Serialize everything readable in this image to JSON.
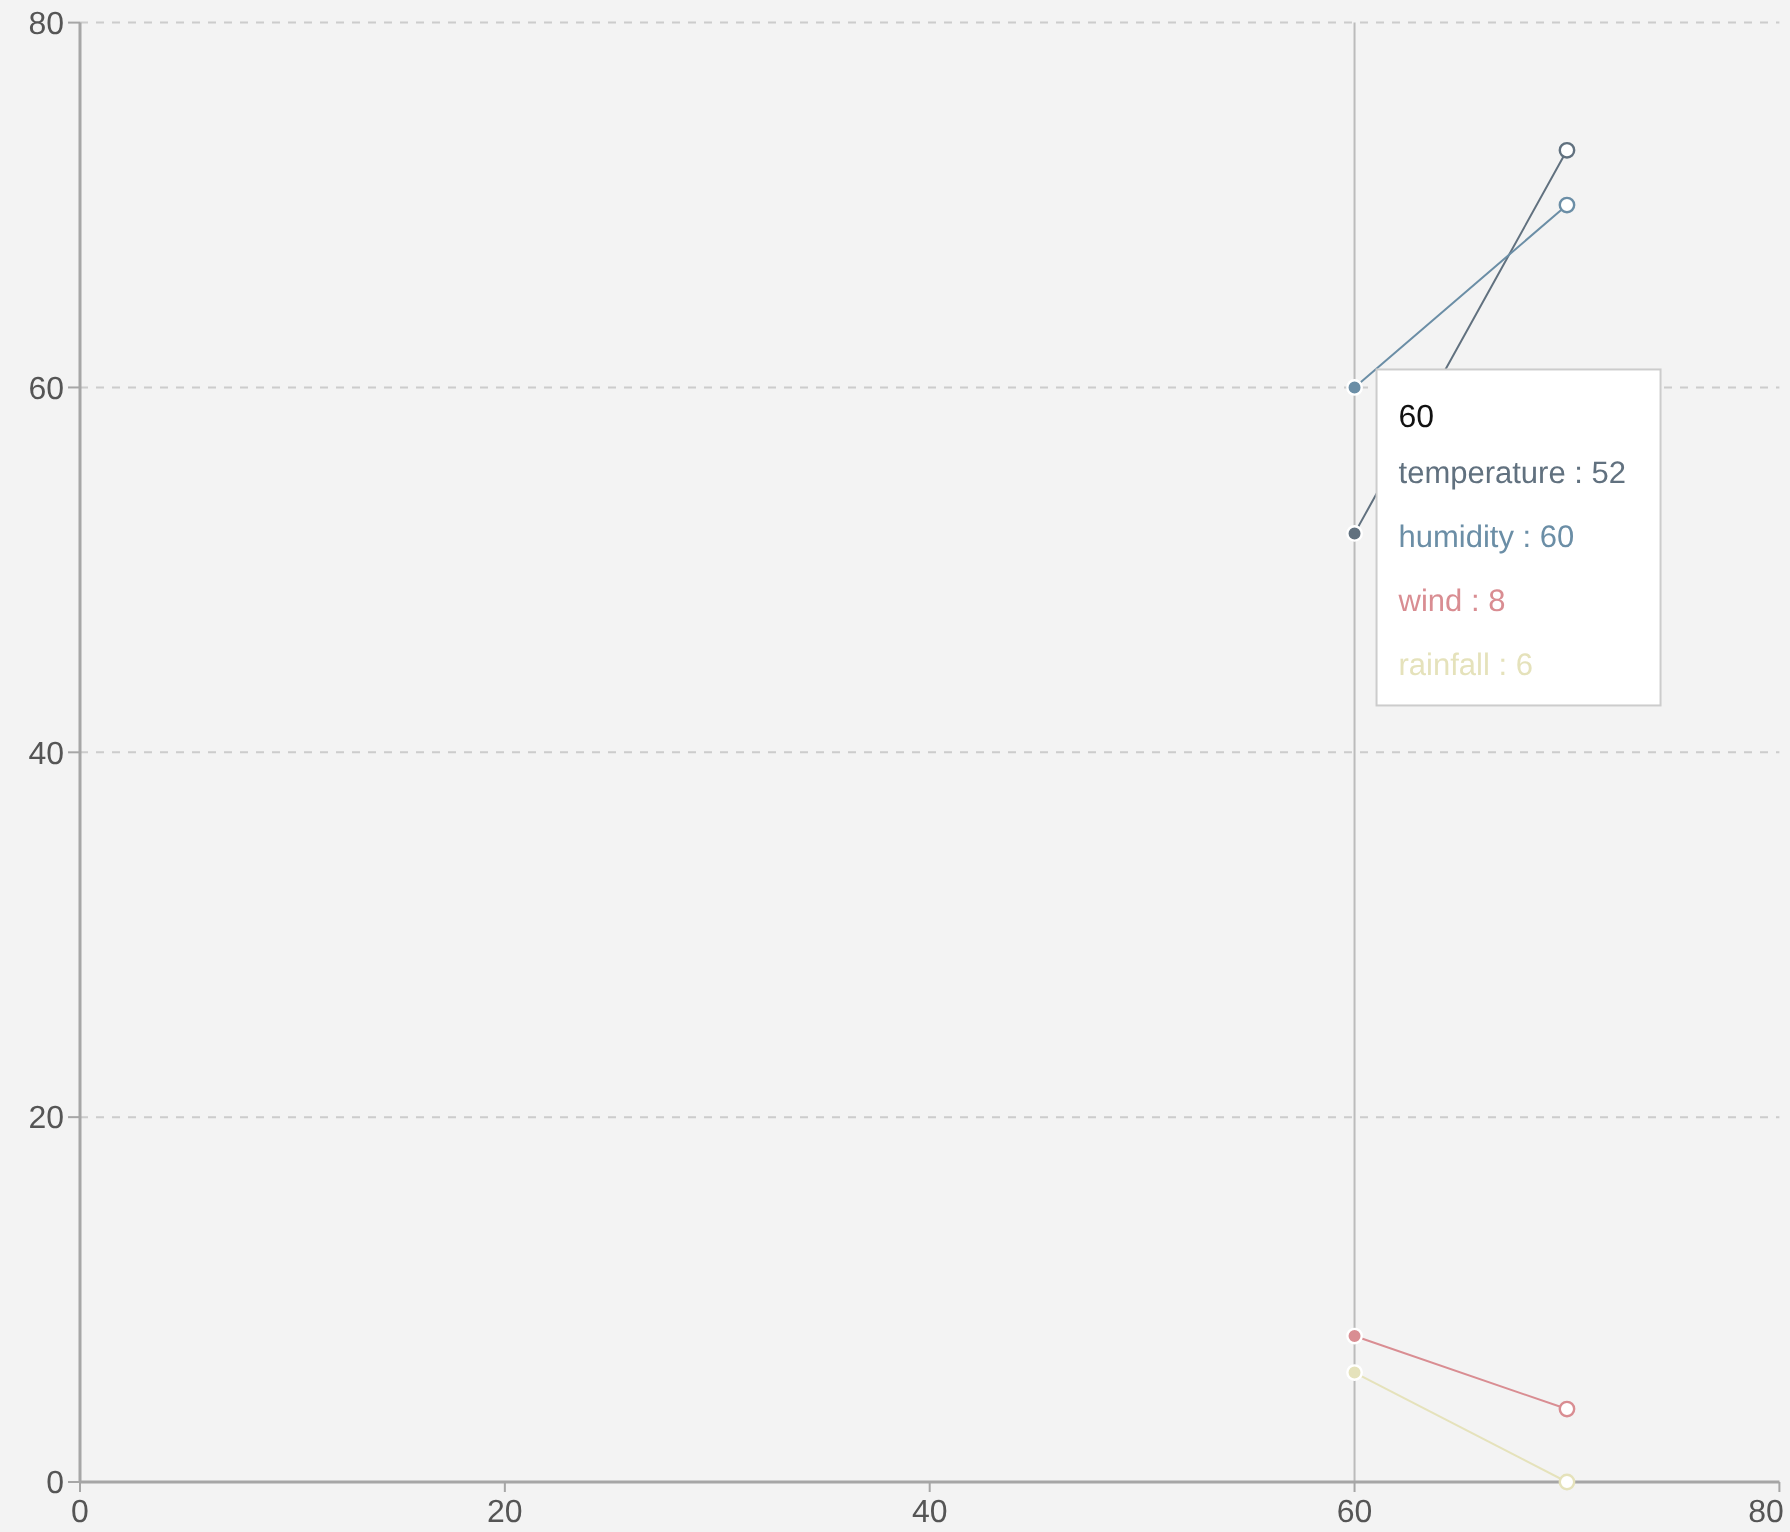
{
  "chart_data": {
    "type": "line",
    "x": [
      60,
      70
    ],
    "series": [
      {
        "name": "temperature",
        "color": "#61717f",
        "values": [
          52,
          73
        ],
        "value_labels": [
          ": 52",
          null
        ]
      },
      {
        "name": "humidity",
        "color": "#6b8ea6",
        "values": [
          60,
          70
        ],
        "value_labels": [
          ": 60",
          null
        ]
      },
      {
        "name": "wind",
        "color": "#d98d92",
        "values": [
          8,
          4
        ],
        "value_labels": [
          ": 8",
          null
        ]
      },
      {
        "name": "rainfall",
        "color": "#e5e2bb",
        "values": [
          6,
          0
        ],
        "value_labels": [
          ": 6",
          null
        ]
      }
    ],
    "xlim": [
      0,
      80
    ],
    "ylim": [
      0,
      80
    ],
    "xticks": [
      0,
      20,
      40,
      60,
      80
    ],
    "yticks": [
      0,
      20,
      40,
      60,
      80
    ],
    "grid": "y",
    "marker": "circle",
    "line_style": "solid",
    "ref_lines": [
      {
        "axis": "x",
        "value": 60,
        "label": "60"
      }
    ]
  }
}
